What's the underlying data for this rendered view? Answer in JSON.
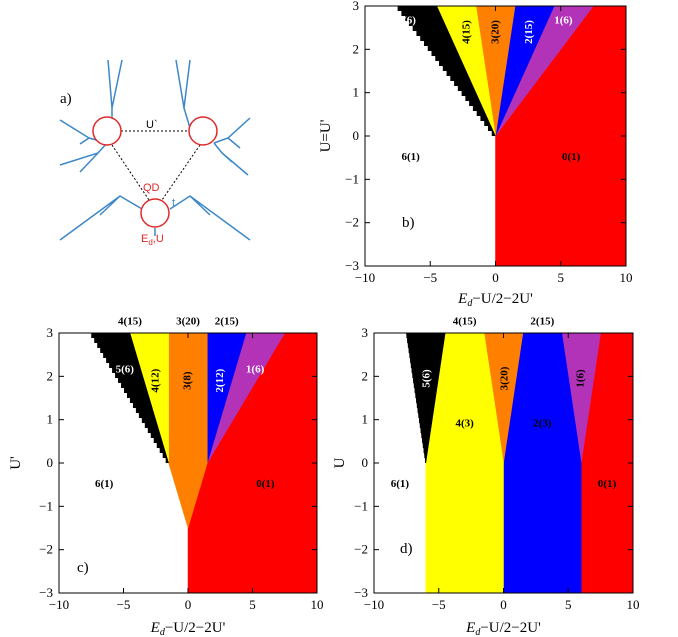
{
  "figure": {
    "schematic": {
      "panel_label": "a)",
      "label_uprime": "U`",
      "label_qd": "QD",
      "label_t": "t",
      "label_ed_u": "E",
      "label_ed_u_sub": "d",
      "label_ed_u_tail": ",U",
      "colors": {
        "wire": "#3d87c9",
        "dot": "#e0292b",
        "bond": "#000000"
      }
    },
    "region_colors": {
      "0": "#ff0000",
      "1": "#b233b8",
      "2": "#0000ff",
      "3": "#ff7f00",
      "4": "#ffff00",
      "5": "#000000",
      "6": "#ffffff"
    }
  },
  "chart_data": [
    {
      "type": "area",
      "panel_label": "b)",
      "xlabel_main": "E",
      "xlabel_sub": "d",
      "xlabel_tail": "−U/2−2U'",
      "ylabel": "U=U'",
      "xlim": [
        -10,
        10
      ],
      "ylim": [
        -3,
        3
      ],
      "xticks": [
        "−10",
        "−5",
        "0",
        "5",
        "10"
      ],
      "yticks": [
        "−3",
        "−2",
        "−1",
        "0",
        "1",
        "2",
        "3"
      ],
      "xtick_values": [
        -10,
        -5,
        0,
        5,
        10
      ],
      "ytick_values": [
        -3,
        -2,
        -1,
        0,
        1,
        2,
        3
      ],
      "regions": [
        {
          "key": "0",
          "points": [
            [
              0,
              -3
            ],
            [
              10,
              -3
            ],
            [
              10,
              3
            ],
            [
              7.5,
              3
            ],
            [
              0,
              0
            ]
          ]
        },
        {
          "key": "1",
          "points": [
            [
              0,
              0
            ],
            [
              7.5,
              3
            ],
            [
              4.5,
              3
            ]
          ]
        },
        {
          "key": "2",
          "points": [
            [
              0,
              0
            ],
            [
              4.5,
              3
            ],
            [
              1.5,
              3
            ]
          ]
        },
        {
          "key": "3",
          "points": [
            [
              0,
              0
            ],
            [
              1.5,
              3
            ],
            [
              -1.5,
              3
            ]
          ]
        },
        {
          "key": "4",
          "points": [
            [
              0,
              0
            ],
            [
              -1.5,
              3
            ],
            [
              -4.5,
              3
            ]
          ]
        },
        {
          "key": "5",
          "points": [
            [
              0,
              0
            ],
            [
              -4.5,
              3
            ],
            [
              -7.5,
              3
            ]
          ]
        }
      ],
      "labels": [
        {
          "text": "5(6)",
          "x": -6.8,
          "y": 2.65,
          "color": "#ffffff",
          "rot": 0
        },
        {
          "text": "4(15)",
          "x": -2.2,
          "y": 2.4,
          "color": "#000000",
          "rot": -90
        },
        {
          "text": "3(20)",
          "x": 0.05,
          "y": 2.4,
          "color": "#000000",
          "rot": -90
        },
        {
          "text": "2(15)",
          "x": 2.6,
          "y": 2.4,
          "color": "#ffffff",
          "rot": -90
        },
        {
          "text": "1(6)",
          "x": 5.2,
          "y": 2.65,
          "color": "#ffffff",
          "rot": 0
        },
        {
          "text": "6(1)",
          "x": -6.5,
          "y": -0.5,
          "color": "#000000",
          "rot": 0
        },
        {
          "text": "0(1)",
          "x": 5.8,
          "y": -0.5,
          "color": "#000000",
          "rot": 0
        }
      ]
    },
    {
      "type": "area",
      "panel_label": "c)",
      "xlabel_main": "E",
      "xlabel_sub": "d",
      "xlabel_tail": "−U/2−2U'",
      "ylabel": "U'",
      "xlim": [
        -10,
        10
      ],
      "ylim": [
        -3,
        3
      ],
      "xticks": [
        "−10",
        "−5",
        "0",
        "5",
        "10"
      ],
      "yticks": [
        "−3",
        "−2",
        "−1",
        "0",
        "1",
        "2",
        "3"
      ],
      "xtick_values": [
        -10,
        -5,
        0,
        5,
        10
      ],
      "ytick_values": [
        -3,
        -2,
        -1,
        0,
        1,
        2,
        3
      ],
      "regions": [
        {
          "key": "0",
          "points": [
            [
              0,
              -3
            ],
            [
              10,
              -3
            ],
            [
              10,
              3
            ],
            [
              7.5,
              3
            ],
            [
              1.5,
              0
            ],
            [
              0,
              -1.5
            ]
          ]
        },
        {
          "key": "1",
          "points": [
            [
              1.5,
              0
            ],
            [
              7.5,
              3
            ],
            [
              4.5,
              3
            ]
          ]
        },
        {
          "key": "2",
          "points": [
            [
              1.5,
              0
            ],
            [
              4.5,
              3
            ],
            [
              1.5,
              3
            ]
          ]
        },
        {
          "key": "3",
          "points": [
            [
              -1.5,
              0
            ],
            [
              -1.5,
              3
            ],
            [
              1.5,
              3
            ],
            [
              1.5,
              0
            ],
            [
              0,
              -1.5
            ]
          ]
        },
        {
          "key": "4",
          "points": [
            [
              -1.5,
              0
            ],
            [
              -1.5,
              3
            ],
            [
              -4.5,
              3
            ]
          ]
        },
        {
          "key": "5",
          "points": [
            [
              -1.5,
              0
            ],
            [
              -4.5,
              3
            ],
            [
              -7.5,
              3
            ]
          ]
        }
      ],
      "labels": [
        {
          "text": "4(15)",
          "x": -4.5,
          "y": 3.25,
          "color": "#000000",
          "rot": 0
        },
        {
          "text": "3(20)",
          "x": 0,
          "y": 3.25,
          "color": "#000000",
          "rot": 0
        },
        {
          "text": "2(15)",
          "x": 3.0,
          "y": 3.25,
          "color": "#000000",
          "rot": 0
        },
        {
          "text": "5(6)",
          "x": -4.9,
          "y": 2.15,
          "color": "#ffffff",
          "rot": 0
        },
        {
          "text": "4(12)",
          "x": -2.5,
          "y": 1.9,
          "color": "#000000",
          "rot": -90
        },
        {
          "text": "3(8)",
          "x": 0,
          "y": 1.9,
          "color": "#000000",
          "rot": -90
        },
        {
          "text": "2(12)",
          "x": 2.5,
          "y": 1.9,
          "color": "#ffffff",
          "rot": -90
        },
        {
          "text": "1(6)",
          "x": 5.2,
          "y": 2.15,
          "color": "#ffffff",
          "rot": 0
        },
        {
          "text": "6(1)",
          "x": -6.5,
          "y": -0.5,
          "color": "#000000",
          "rot": 0
        },
        {
          "text": "0(1)",
          "x": 6.0,
          "y": -0.5,
          "color": "#000000",
          "rot": 0
        }
      ]
    },
    {
      "type": "area",
      "panel_label": "d)",
      "xlabel_main": "E",
      "xlabel_sub": "d",
      "xlabel_tail": "−U/2−2U'",
      "ylabel": "U",
      "xlim": [
        -10,
        10
      ],
      "ylim": [
        -3,
        3
      ],
      "xticks": [
        "−10",
        "−5",
        "0",
        "5",
        "10"
      ],
      "yticks": [
        "−3",
        "−2",
        "−1",
        "0",
        "1",
        "2",
        "3"
      ],
      "xtick_values": [
        -10,
        -5,
        0,
        5,
        10
      ],
      "ytick_values": [
        -3,
        -2,
        -1,
        0,
        1,
        2,
        3
      ],
      "regions": [
        {
          "key": "0",
          "points": [
            [
              6,
              -3
            ],
            [
              10,
              -3
            ],
            [
              10,
              3
            ],
            [
              7.5,
              3
            ],
            [
              6,
              0
            ]
          ]
        },
        {
          "key": "1",
          "points": [
            [
              6,
              0
            ],
            [
              7.5,
              3
            ],
            [
              4.5,
              3
            ]
          ]
        },
        {
          "key": "2",
          "points": [
            [
              0,
              -3
            ],
            [
              6,
              -3
            ],
            [
              6,
              0
            ],
            [
              4.5,
              3
            ],
            [
              1.5,
              3
            ],
            [
              0,
              0
            ]
          ]
        },
        {
          "key": "3",
          "points": [
            [
              0,
              0
            ],
            [
              1.5,
              3
            ],
            [
              -1.5,
              3
            ]
          ]
        },
        {
          "key": "4",
          "points": [
            [
              -6,
              -3
            ],
            [
              0,
              -3
            ],
            [
              0,
              0
            ],
            [
              -1.5,
              3
            ],
            [
              -4.5,
              3
            ],
            [
              -6,
              0
            ]
          ]
        },
        {
          "key": "5",
          "points": [
            [
              -6,
              0
            ],
            [
              -4.5,
              3
            ],
            [
              -7.5,
              3
            ]
          ]
        }
      ],
      "labels": [
        {
          "text": "4(15)",
          "x": -3.0,
          "y": 3.25,
          "color": "#000000",
          "rot": 0
        },
        {
          "text": "2(15)",
          "x": 3.0,
          "y": 3.25,
          "color": "#000000",
          "rot": 0
        },
        {
          "text": "5(6)",
          "x": -5.9,
          "y": 1.95,
          "color": "#ffffff",
          "rot": -90
        },
        {
          "text": "3(20)",
          "x": 0.1,
          "y": 1.95,
          "color": "#000000",
          "rot": -90
        },
        {
          "text": "1(6)",
          "x": 6.0,
          "y": 1.95,
          "color": "#000000",
          "rot": -90
        },
        {
          "text": "4(3)",
          "x": -3.0,
          "y": 0.9,
          "color": "#000000",
          "rot": 0
        },
        {
          "text": "2(3)",
          "x": 3.0,
          "y": 0.9,
          "color": "#000000",
          "rot": 0
        },
        {
          "text": "6(1)",
          "x": -8.0,
          "y": -0.5,
          "color": "#000000",
          "rot": 0
        },
        {
          "text": "0(1)",
          "x": 8.0,
          "y": -0.5,
          "color": "#000000",
          "rot": 0
        }
      ]
    }
  ]
}
